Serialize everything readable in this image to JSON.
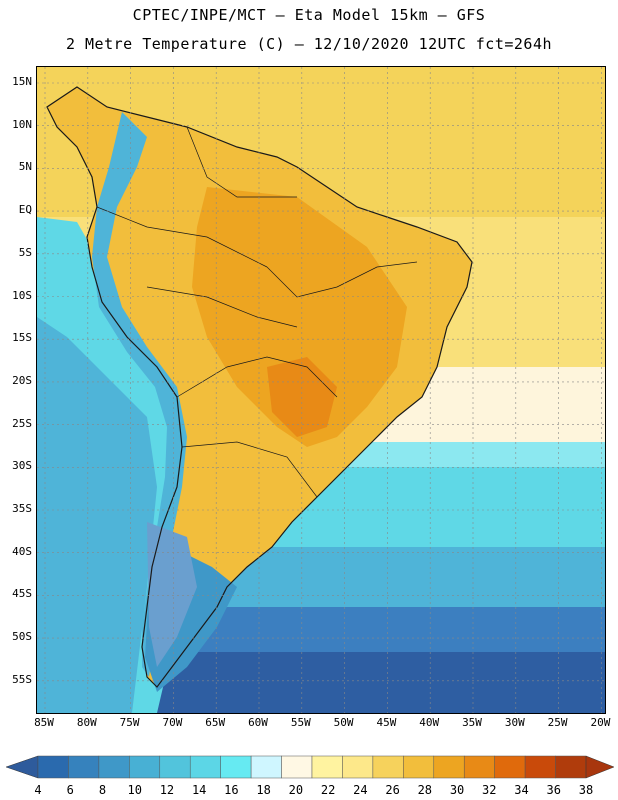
{
  "title_line1": "CPTEC/INPE/MCT –  Eta Model 15km – GFS",
  "title_line2": "2 Metre Temperature (C) – 12/10/2020 12UTC fct=264h",
  "lat_labels": [
    "15N",
    "10N",
    "5N",
    "EQ",
    "5S",
    "10S",
    "15S",
    "20S",
    "25S",
    "30S",
    "35S",
    "40S",
    "45S",
    "50S",
    "55S"
  ],
  "lon_labels": [
    "85W",
    "80W",
    "75W",
    "70W",
    "65W",
    "60W",
    "55W",
    "50W",
    "45W",
    "40W",
    "35W",
    "30W",
    "25W",
    "20W"
  ],
  "legend": {
    "values": [
      "4",
      "6",
      "8",
      "10",
      "12",
      "14",
      "16",
      "18",
      "20",
      "22",
      "24",
      "26",
      "28",
      "30",
      "32",
      "34",
      "36",
      "38"
    ],
    "colors": [
      "#2a6aae",
      "#3682bd",
      "#3f98c8",
      "#48b0d4",
      "#52c4dc",
      "#5cd6e6",
      "#66eaf2",
      "#cff6ff",
      "#fff8e4",
      "#fff3a0",
      "#fde88a",
      "#f6d25c",
      "#f2be3c",
      "#eda521",
      "#e88a16",
      "#e06a0c",
      "#c94a0a",
      "#b03c0c"
    ],
    "low_arrow_color": "#2e5b9c",
    "high_arrow_color": "#a8360e"
  },
  "map_colors": {
    "ocean_south_deep": "#2e5ea2",
    "ocean_south": "#3c7fc0",
    "ocean_mid": "#4fb4d8",
    "ocean_cyan": "#5fd8e6",
    "ocean_light": "#8ce8f0",
    "ocean_pale": "#fef5dc",
    "ocean_north_tropic": "#f9e07a",
    "ocean_north": "#f4d35a",
    "land_warm": "#f2be3c",
    "land_hot": "#eda521",
    "land_hotter": "#e88a16",
    "andes": "#4fb4d8",
    "andes_high": "#6a9fcf",
    "patagonia": "#3f98c8",
    "coast": "#1a1a1a"
  }
}
